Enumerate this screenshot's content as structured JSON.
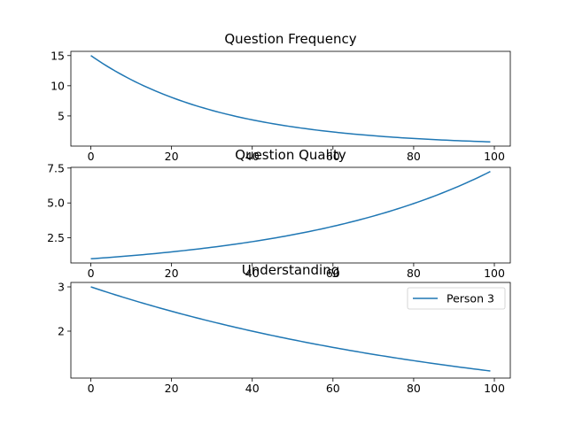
{
  "chart_data": [
    {
      "type": "line",
      "title": "Question Frequency",
      "xlabel": "",
      "ylabel": "",
      "xlim": [
        -4.95,
        103.95
      ],
      "ylim": [
        0.0,
        15.7
      ],
      "xticks": [
        0,
        20,
        40,
        60,
        80,
        100
      ],
      "yticks": [
        5,
        10,
        15
      ],
      "grid": false,
      "series": [
        {
          "color": "#1f77b4",
          "start": 15.0,
          "end": 0.7,
          "n": 100
        }
      ]
    },
    {
      "type": "line",
      "title": "Question Quality",
      "xlabel": "",
      "ylabel": "",
      "xlim": [
        -4.95,
        103.95
      ],
      "ylim": [
        0.7,
        7.55
      ],
      "xticks": [
        0,
        20,
        40,
        60,
        80,
        100
      ],
      "yticks": [
        2.5,
        5.0,
        7.5
      ],
      "yticklabels": [
        "2.5",
        "5.0",
        "7.5"
      ],
      "grid": false,
      "series": [
        {
          "color": "#1f77b4",
          "start": 1.0,
          "end": 7.25,
          "n": 100
        }
      ]
    },
    {
      "type": "line",
      "title": "Understanding",
      "xlabel": "",
      "ylabel": "",
      "xlim": [
        -4.95,
        103.95
      ],
      "ylim": [
        0.94,
        3.1
      ],
      "xticks": [
        0,
        20,
        40,
        60,
        80,
        100
      ],
      "yticks": [
        2,
        3
      ],
      "grid": false,
      "legend": "top-right",
      "series": [
        {
          "name": "Person 3",
          "color": "#1f77b4",
          "start": 3.0,
          "end": 1.1,
          "n": 100
        }
      ]
    }
  ]
}
